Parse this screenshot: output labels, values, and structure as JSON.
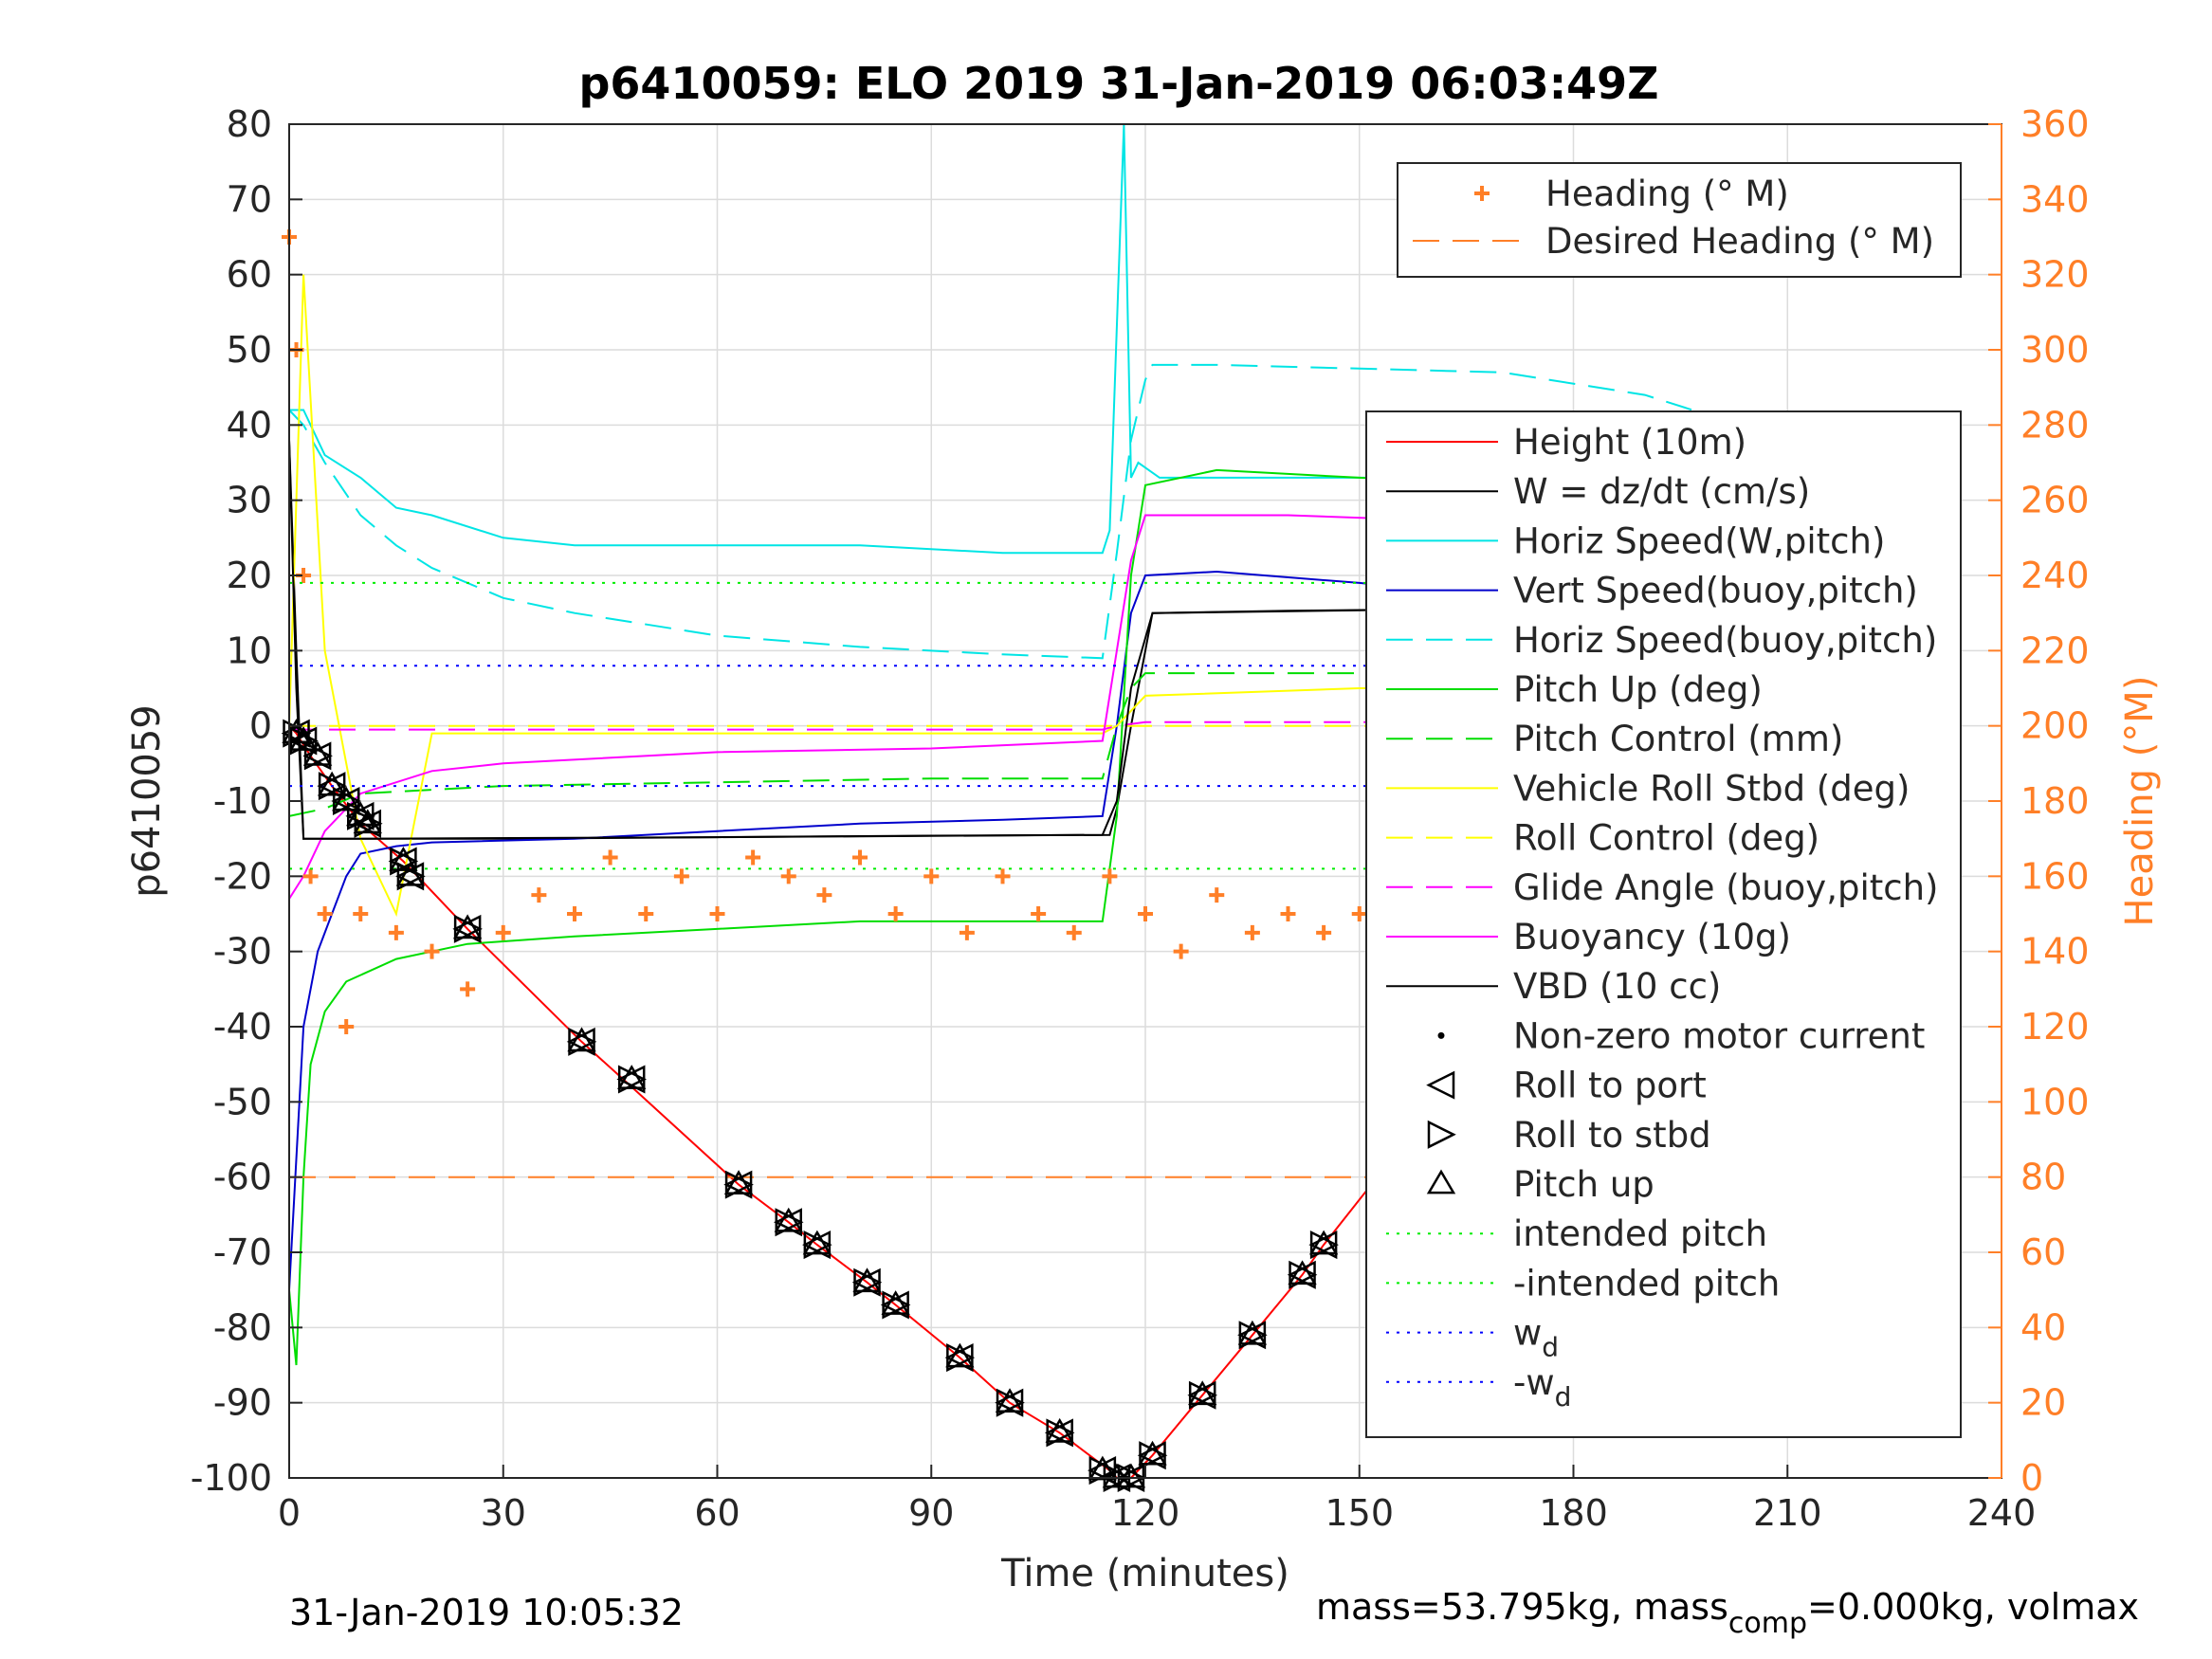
{
  "chart_data": {
    "type": "line",
    "title": "p6410059: ELO 2019 31-Jan-2019 06:03:49Z",
    "xlabel": "Time (minutes)",
    "ylabel": "p6410059",
    "ylabel_right": "Heading (°M)",
    "xlim": [
      0,
      240
    ],
    "ylim": [
      -100,
      80
    ],
    "ylim_right": [
      0,
      360
    ],
    "xticks": [
      "0",
      "30",
      "60",
      "90",
      "120",
      "150",
      "180",
      "210",
      "240"
    ],
    "yticks": [
      "-100",
      "-90",
      "-80",
      "-70",
      "-60",
      "-50",
      "-40",
      "-30",
      "-20",
      "-10",
      "0",
      "10",
      "20",
      "30",
      "40",
      "50",
      "60",
      "70",
      "80"
    ],
    "yticks_right": [
      "0",
      "20",
      "40",
      "60",
      "80",
      "100",
      "120",
      "140",
      "160",
      "180",
      "200",
      "220",
      "240",
      "260",
      "280",
      "300",
      "320",
      "340",
      "360"
    ],
    "grid": true,
    "colors": {
      "height": "#ff0000",
      "w": "#000000",
      "horiz_speed_w": "#00e5e5",
      "vert_speed": "#0000cc",
      "horiz_speed_buoy": "#00e5e5",
      "pitch_up": "#00dd00",
      "pitch_control": "#00dd00",
      "roll_stbd": "#ffff00",
      "roll_control": "#ffff00",
      "glide_angle": "#ff00ff",
      "buoyancy": "#ff00ff",
      "vbd": "#000000",
      "heading": "#ff7f27",
      "intended_pitch": "#00ee00",
      "wd": "#0000ff"
    },
    "legend_right_axis": {
      "placement": "top-right",
      "entries": [
        "Heading (° M)",
        "Desired Heading (° M)"
      ]
    },
    "legend_left_axis": {
      "placement": "right",
      "entries": [
        "Height (10m)",
        "W = dz/dt (cm/s)",
        "Horiz Speed(W,pitch)",
        "Vert Speed(buoy,pitch)",
        "Horiz Speed(buoy,pitch)",
        "Pitch Up (deg)",
        "Pitch Control (mm)",
        "Vehicle Roll Stbd (deg)",
        "Roll Control (deg)",
        "Glide Angle (buoy,pitch)",
        "Buoyancy (10g)",
        "VBD (10 cc)",
        "Non-zero motor current",
        "Roll to port",
        "Roll to stbd",
        "Pitch up",
        "intended pitch",
        "-intended pitch",
        "w_d",
        "-w_d"
      ]
    },
    "series": [
      {
        "name": "Height (10m)",
        "x": [
          0,
          1,
          3,
          6,
          10,
          16,
          25,
          41,
          48,
          63,
          70,
          74,
          81,
          85,
          94,
          101,
          108,
          115,
          116,
          118,
          121,
          128,
          135,
          142,
          145,
          160,
          173,
          180,
          187,
          195,
          205,
          215,
          224,
          229
        ],
        "y": [
          0,
          -1,
          -4,
          -8,
          -13,
          -18,
          -27,
          -42,
          -48,
          -61,
          -66,
          -69,
          -74,
          -77,
          -84,
          -90,
          -94,
          -99,
          -100,
          -100,
          -97,
          -89,
          -81,
          -73,
          -69,
          -51,
          -38,
          -31,
          -24,
          -18,
          -10,
          -5,
          -2,
          0
        ]
      },
      {
        "name": "W = dz/dt (cm/s)",
        "x": [
          0,
          1,
          2,
          10,
          30,
          60,
          90,
          115,
          116,
          118,
          120,
          121,
          140,
          160,
          180,
          200,
          224,
          225,
          226,
          228
        ],
        "y": [
          38,
          10,
          -15,
          -15,
          -15,
          -14.8,
          -14.6,
          -14.5,
          -11,
          0,
          10,
          15,
          15.3,
          15.5,
          15.6,
          15.7,
          15.7,
          28,
          29,
          29
        ]
      },
      {
        "name": "Horiz Speed(W,pitch)",
        "x": [
          0,
          2,
          5,
          10,
          15,
          20,
          30,
          40,
          60,
          80,
          100,
          114,
          115,
          117,
          118,
          119,
          122,
          130,
          160,
          190,
          210,
          220,
          228
        ],
        "y": [
          42,
          42,
          36,
          33,
          29,
          28,
          25,
          24,
          24,
          24,
          23,
          23,
          26,
          80,
          33,
          35,
          33,
          33,
          33,
          32,
          28,
          22,
          28
        ]
      },
      {
        "name": "Vert Speed(buoy,pitch)",
        "x": [
          0,
          2,
          4,
          6,
          8,
          10,
          15,
          20,
          40,
          60,
          80,
          100,
          114,
          116,
          118,
          120,
          130,
          150,
          170,
          190,
          210,
          220,
          228
        ],
        "y": [
          -75,
          -40,
          -30,
          -25,
          -20,
          -17,
          -16,
          -15.5,
          -15,
          -14,
          -13,
          -12.5,
          -12,
          0,
          15,
          20,
          20.5,
          19,
          17,
          15,
          12,
          8,
          12
        ]
      },
      {
        "name": "Horiz Speed(buoy,pitch)",
        "x": [
          0,
          2,
          5,
          10,
          15,
          20,
          25,
          30,
          40,
          60,
          80,
          100,
          114,
          116,
          118,
          120,
          121,
          130,
          150,
          170,
          190,
          200,
          210,
          220,
          228
        ],
        "y": [
          42,
          40,
          35,
          28,
          24,
          21,
          19,
          17,
          15,
          12,
          10.5,
          9.5,
          9,
          23,
          38,
          46,
          48,
          48,
          47.5,
          47,
          44,
          41,
          38,
          32,
          20
        ]
      },
      {
        "name": "Pitch Up (deg)",
        "x": [
          0,
          1,
          2,
          3,
          5,
          8,
          15,
          25,
          40,
          60,
          80,
          100,
          114,
          116,
          118,
          120,
          130,
          150,
          170,
          190,
          210,
          220,
          228
        ],
        "y": [
          -75,
          -85,
          -60,
          -45,
          -38,
          -34,
          -31,
          -29,
          -28,
          -27,
          -26,
          -26,
          -26,
          -12,
          20,
          32,
          34,
          33,
          32,
          31,
          27,
          22,
          14
        ]
      },
      {
        "name": "Pitch Control (mm)",
        "x": [
          0,
          5,
          10,
          20,
          30,
          60,
          90,
          114,
          116,
          118,
          120,
          130,
          228
        ],
        "y": [
          -12,
          -11,
          -9,
          -8.5,
          -8,
          -7.5,
          -7,
          -7,
          0,
          5,
          7,
          7,
          7
        ]
      },
      {
        "name": "Vehicle Roll Stbd (deg)",
        "x": [
          0,
          2,
          5,
          10,
          15,
          20,
          114,
          116,
          118,
          120,
          150,
          180,
          210,
          228
        ],
        "y": [
          0,
          60,
          10,
          -15,
          -25,
          -1,
          -1,
          0,
          2,
          4,
          5,
          5,
          5,
          5
        ]
      },
      {
        "name": "Roll Control (deg)",
        "x": [
          0,
          120,
          228
        ],
        "y": [
          0,
          0,
          0
        ]
      },
      {
        "name": "Glide Angle (buoy,pitch)",
        "x": [
          0,
          114,
          116,
          120,
          228
        ],
        "y": [
          -0.5,
          -0.5,
          0,
          0.5,
          0.5
        ]
      },
      {
        "name": "Buoyancy (10g)",
        "x": [
          0,
          2,
          5,
          10,
          20,
          30,
          60,
          90,
          114,
          116,
          118,
          120,
          140,
          170,
          190,
          200,
          210,
          220,
          228
        ],
        "y": [
          -23,
          -20,
          -14,
          -9,
          -6,
          -5,
          -3.5,
          -3,
          -2,
          10,
          22,
          28,
          28,
          27,
          25,
          23,
          20,
          18,
          16
        ]
      },
      {
        "name": "VBD (10 cc)",
        "x": [
          0,
          1,
          2,
          10,
          60,
          114,
          116,
          118,
          121,
          160,
          224,
          225,
          228
        ],
        "y": [
          38,
          5,
          -15,
          -15,
          -14.8,
          -14.5,
          -10,
          5,
          15,
          15.5,
          15.7,
          28,
          29
        ]
      },
      {
        "name": "Heading (° M)",
        "x": [
          0,
          1,
          2,
          3,
          5,
          8,
          10,
          15,
          20,
          25,
          30,
          35,
          40,
          45,
          50,
          55,
          60,
          65,
          70,
          75,
          80,
          85,
          90,
          95,
          100,
          105,
          110,
          115,
          120,
          125,
          130,
          135,
          140,
          145,
          150,
          155,
          160,
          165,
          170,
          175,
          180,
          185,
          190,
          195,
          200,
          205,
          210,
          215,
          220,
          225,
          228
        ],
        "y": [
          330,
          300,
          240,
          160,
          150,
          120,
          150,
          145,
          140,
          130,
          145,
          155,
          150,
          165,
          150,
          160,
          150,
          165,
          160,
          155,
          165,
          150,
          160,
          145,
          160,
          150,
          145,
          160,
          150,
          140,
          155,
          145,
          150,
          145,
          150,
          140,
          150,
          145,
          155,
          150,
          140,
          150,
          135,
          145,
          150,
          140,
          150,
          135,
          150,
          160,
          100
        ]
      },
      {
        "name": "Desired Heading (° M)",
        "x": [
          0,
          228
        ],
        "y": [
          150,
          150
        ]
      },
      {
        "name": "intended pitch",
        "x": [
          0,
          228
        ],
        "y": [
          19,
          19
        ]
      },
      {
        "name": "-intended pitch",
        "x": [
          0,
          228
        ],
        "y": [
          -19,
          -19
        ]
      },
      {
        "name": "w_d",
        "x": [
          0,
          228
        ],
        "y": [
          8,
          8
        ]
      },
      {
        "name": "-w_d",
        "x": [
          0,
          228
        ],
        "y": [
          -8,
          -8
        ]
      }
    ],
    "markers": {
      "roll_pitch_markers": [
        [
          1,
          -1
        ],
        [
          2,
          -2
        ],
        [
          4,
          -4
        ],
        [
          6,
          -8
        ],
        [
          8,
          -10
        ],
        [
          10,
          -12
        ],
        [
          11,
          -13
        ],
        [
          16,
          -18
        ],
        [
          17,
          -20
        ],
        [
          25,
          -27
        ],
        [
          41,
          -42
        ],
        [
          48,
          -47
        ],
        [
          63,
          -61
        ],
        [
          70,
          -66
        ],
        [
          74,
          -69
        ],
        [
          81,
          -74
        ],
        [
          85,
          -77
        ],
        [
          94,
          -84
        ],
        [
          101,
          -90
        ],
        [
          108,
          -94
        ],
        [
          114,
          -99
        ],
        [
          116,
          -100
        ],
        [
          118,
          -100
        ],
        [
          121,
          -97
        ],
        [
          128,
          -89
        ],
        [
          135,
          -81
        ],
        [
          142,
          -73
        ],
        [
          145,
          -69
        ],
        [
          161,
          -51
        ],
        [
          173,
          -38
        ],
        [
          180,
          -31
        ],
        [
          187,
          -24
        ],
        [
          195,
          -18
        ],
        [
          198,
          -15
        ],
        [
          202,
          -12
        ],
        [
          206,
          -10
        ],
        [
          210,
          -8
        ],
        [
          213,
          -6
        ],
        [
          216,
          -4
        ],
        [
          220,
          -3
        ],
        [
          223,
          -2
        ],
        [
          226,
          -0.5
        ]
      ]
    }
  },
  "footer": {
    "timestamp": "31-Jan-2019 10:05:32",
    "mass_text": "mass=53.795kg, mass",
    "mass_sub": "comp",
    "mass_tail": "=0.000kg, volmax"
  }
}
